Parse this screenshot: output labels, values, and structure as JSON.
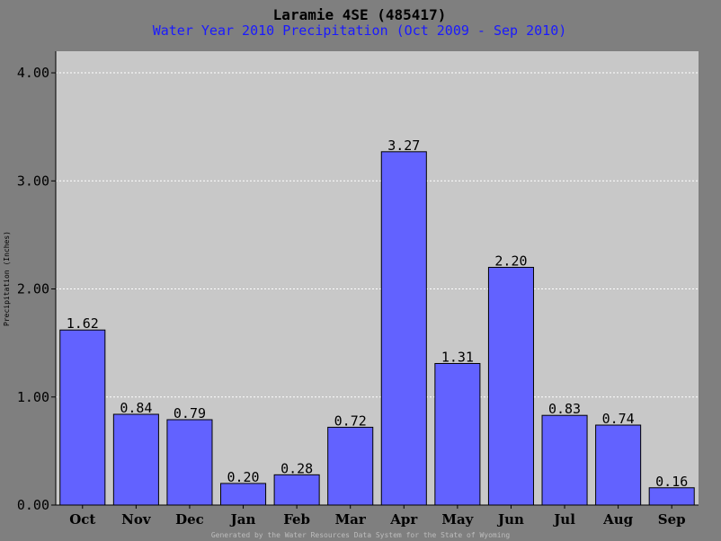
{
  "colors": {
    "page_background": "#7f7f7f",
    "plot_background": "#c8c8c8",
    "bar_fill": "#6262ff",
    "bar_stroke": "#000000",
    "title": "#000000",
    "subtitle": "#1a1aff",
    "gridline": "#ffffff",
    "footer": "#bdbdbd"
  },
  "chart_data": {
    "type": "bar",
    "title": "Laramie 4SE (485417)",
    "subtitle": "Water Year 2010 Precipitation (Oct 2009 - Sep 2010)",
    "xlabel": "",
    "ylabel": "Precipitation (Inches)",
    "ylim": [
      0,
      4.2
    ],
    "yticks": [
      0,
      1,
      2,
      3,
      4
    ],
    "ytick_labels": [
      "0.00",
      "1.00",
      "2.00",
      "3.00",
      "4.00"
    ],
    "grid": true,
    "categories": [
      "Oct",
      "Nov",
      "Dec",
      "Jan",
      "Feb",
      "Mar",
      "Apr",
      "May",
      "Jun",
      "Jul",
      "Aug",
      "Sep"
    ],
    "values": [
      1.62,
      0.84,
      0.79,
      0.2,
      0.28,
      0.72,
      3.27,
      1.31,
      2.2,
      0.83,
      0.74,
      0.16
    ],
    "data_labels": [
      "1.62",
      "0.84",
      "0.79",
      "0.20",
      "0.28",
      "0.72",
      "3.27",
      "1.31",
      "2.20",
      "0.83",
      "0.74",
      "0.16"
    ]
  },
  "footer": "Generated by the Water Resources Data System for the State of Wyoming"
}
